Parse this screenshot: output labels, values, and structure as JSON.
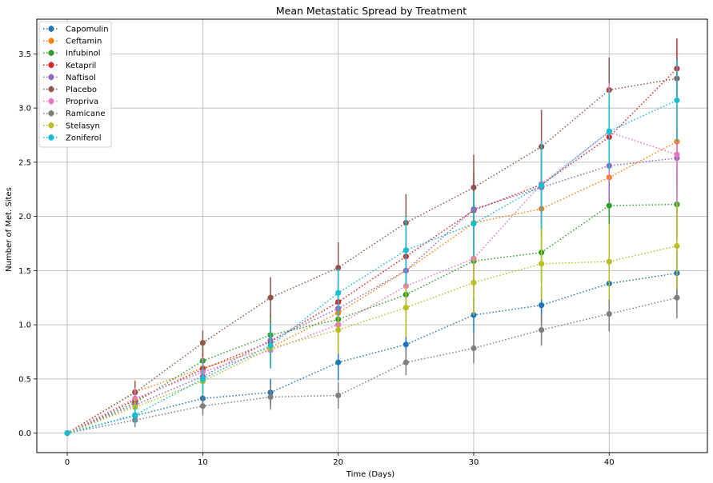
{
  "chart_data": {
    "type": "line",
    "title": "Mean Metastatic Spread by Treatment",
    "xlabel": "Time (Days)",
    "ylabel": "Number of Met. Sites",
    "xlim": [
      -2.25,
      47.25
    ],
    "ylim": [
      -0.18,
      3.82
    ],
    "x": [
      0,
      5,
      10,
      15,
      20,
      25,
      30,
      35,
      40,
      45
    ],
    "xticks": [
      0,
      10,
      20,
      30,
      40
    ],
    "xtick_labels": [
      "0",
      "10",
      "20",
      "30",
      "40"
    ],
    "yticks": [
      0.0,
      0.5,
      1.0,
      1.5,
      2.0,
      2.5,
      3.0,
      3.5
    ],
    "ytick_labels": [
      "0.0",
      "0.5",
      "1.0",
      "1.5",
      "2.0",
      "2.5",
      "3.0",
      "3.5"
    ],
    "grid": true,
    "legend_position": "top-left",
    "line_style": "dotted",
    "marker": "circle",
    "series": [
      {
        "name": "Capomulin",
        "color": "#1f77b4",
        "values": [
          0,
          0.16,
          0.32,
          0.375,
          0.652,
          0.818,
          1.09,
          1.18,
          1.38,
          1.476
        ],
        "errors": [
          0,
          0.074,
          0.099,
          0.127,
          0.163,
          0.181,
          0.173,
          0.168,
          0.176,
          0.202
        ]
      },
      {
        "name": "Ceftamin",
        "color": "#ff7f0e",
        "values": [
          0,
          0.38,
          0.6,
          0.79,
          1.11,
          1.5,
          1.94,
          2.07,
          2.36,
          2.69
        ],
        "errors": [
          0,
          0.108,
          0.152,
          0.18,
          0.241,
          0.258,
          0.249,
          0.25,
          0.285,
          0.3
        ]
      },
      {
        "name": "Infubinol",
        "color": "#2ca02c",
        "values": [
          0,
          0.28,
          0.667,
          0.905,
          1.05,
          1.278,
          1.588,
          1.667,
          2.1,
          2.111
        ],
        "errors": [
          0,
          0.091,
          0.159,
          0.194,
          0.234,
          0.265,
          0.277,
          0.287,
          0.358,
          0.332
        ]
      },
      {
        "name": "Ketapril",
        "color": "#d62728",
        "values": [
          0,
          0.304,
          0.59,
          0.842,
          1.21,
          1.63,
          2.056,
          2.294,
          2.733,
          3.364
        ],
        "errors": [
          0,
          0.098,
          0.142,
          0.191,
          0.236,
          0.264,
          0.36,
          0.35,
          0.44,
          0.28
        ]
      },
      {
        "name": "Naftisol",
        "color": "#9467bd",
        "values": [
          0,
          0.26,
          0.523,
          0.857,
          1.15,
          1.5,
          2.067,
          2.267,
          2.467,
          2.538
        ],
        "errors": [
          0,
          0.093,
          0.163,
          0.159,
          0.194,
          0.234,
          0.263,
          0.29,
          0.345,
          0.28
        ]
      },
      {
        "name": "Placebo",
        "color": "#8c564b",
        "values": [
          0,
          0.375,
          0.833,
          1.25,
          1.526,
          1.941,
          2.267,
          2.643,
          3.167,
          3.273
        ],
        "errors": [
          0,
          0.1,
          0.115,
          0.19,
          0.235,
          0.264,
          0.3,
          0.341,
          0.3,
          0.205
        ]
      },
      {
        "name": "Propriva",
        "color": "#e377c2",
        "values": [
          0,
          0.32,
          0.565,
          0.765,
          1.0,
          1.357,
          1.611,
          2.3,
          2.778,
          2.571
        ],
        "errors": [
          0,
          0.1,
          0.135,
          0.17,
          0.2,
          0.25,
          0.33,
          0.4,
          0.45,
          0.55
        ]
      },
      {
        "name": "Ramicane",
        "color": "#7f7f7f",
        "values": [
          0,
          0.12,
          0.25,
          0.333,
          0.348,
          0.652,
          0.783,
          0.952,
          1.1,
          1.25
        ],
        "errors": [
          0,
          0.066,
          0.086,
          0.117,
          0.12,
          0.117,
          0.139,
          0.145,
          0.16,
          0.191
        ]
      },
      {
        "name": "Stelasyn",
        "color": "#bcbd22",
        "values": [
          0,
          0.24,
          0.478,
          0.783,
          0.952,
          1.158,
          1.389,
          1.563,
          1.583,
          1.727
        ],
        "errors": [
          0,
          0.088,
          0.127,
          0.16,
          0.22,
          0.27,
          0.3,
          0.33,
          0.35,
          0.4
        ]
      },
      {
        "name": "Zoniferol",
        "color": "#17becf",
        "values": [
          0,
          0.167,
          0.5,
          0.809,
          1.294,
          1.688,
          1.933,
          2.286,
          2.786,
          3.071
        ],
        "errors": [
          0,
          0.077,
          0.142,
          0.21,
          0.22,
          0.31,
          0.3,
          0.4,
          0.36,
          0.38
        ]
      }
    ]
  }
}
